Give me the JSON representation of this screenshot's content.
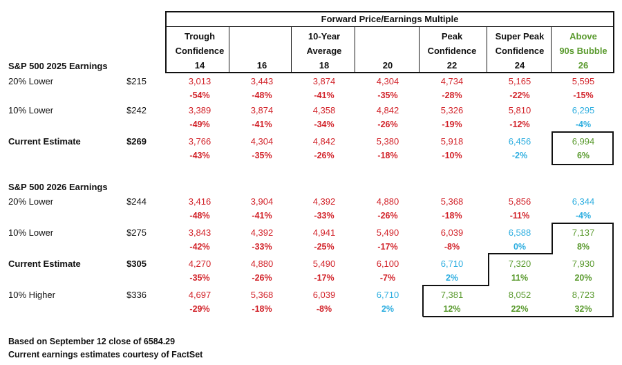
{
  "header": {
    "title": "Forward Price/Earnings Multiple",
    "columns": [
      {
        "label_lines": [
          "Trough",
          "Confidence"
        ],
        "multiple": "14",
        "color": "#111111"
      },
      {
        "label_lines": [],
        "multiple": "16",
        "color": "#111111"
      },
      {
        "label_lines": [
          "10-Year",
          "Average"
        ],
        "multiple": "18",
        "color": "#111111"
      },
      {
        "label_lines": [],
        "multiple": "20",
        "color": "#111111"
      },
      {
        "label_lines": [
          "Peak",
          "Confidence"
        ],
        "multiple": "22",
        "color": "#111111"
      },
      {
        "label_lines": [
          "Super Peak",
          "Confidence"
        ],
        "multiple": "24",
        "color": "#111111"
      },
      {
        "label_lines": [
          "Above",
          "90s Bubble"
        ],
        "multiple": "26",
        "color": "#5a9a2e"
      }
    ]
  },
  "colors": {
    "red": "#d2232a",
    "blue": "#2eaee0",
    "green": "#5a9a2e"
  },
  "sections": [
    {
      "title": "S&P 500 2025 Earnings",
      "rows": [
        {
          "label": "20% Lower",
          "eps": "$215",
          "bold": false,
          "values": [
            "3,013",
            "3,443",
            "3,874",
            "4,304",
            "4,734",
            "5,165",
            "5,595"
          ],
          "pcts": [
            "-54%",
            "-48%",
            "-41%",
            "-35%",
            "-28%",
            "-22%",
            "-15%"
          ],
          "colors": [
            "red",
            "red",
            "red",
            "red",
            "red",
            "red",
            "red"
          ]
        },
        {
          "label": "10% Lower",
          "eps": "$242",
          "bold": false,
          "values": [
            "3,389",
            "3,874",
            "4,358",
            "4,842",
            "5,326",
            "5,810",
            "6,295"
          ],
          "pcts": [
            "-49%",
            "-41%",
            "-34%",
            "-26%",
            "-19%",
            "-12%",
            "-4%"
          ],
          "colors": [
            "red",
            "red",
            "red",
            "red",
            "red",
            "red",
            "blue"
          ]
        },
        {
          "label": "Current Estimate",
          "eps": "$269",
          "bold": true,
          "values": [
            "3,766",
            "4,304",
            "4,842",
            "5,380",
            "5,918",
            "6,456",
            "6,994"
          ],
          "pcts": [
            "-43%",
            "-35%",
            "-26%",
            "-18%",
            "-10%",
            "-2%",
            "6%"
          ],
          "colors": [
            "red",
            "red",
            "red",
            "red",
            "red",
            "blue",
            "green"
          ]
        }
      ]
    },
    {
      "title": "S&P 500 2026 Earnings",
      "rows": [
        {
          "label": "20% Lower",
          "eps": "$244",
          "bold": false,
          "values": [
            "3,416",
            "3,904",
            "4,392",
            "4,880",
            "5,368",
            "5,856",
            "6,344"
          ],
          "pcts": [
            "-48%",
            "-41%",
            "-33%",
            "-26%",
            "-18%",
            "-11%",
            "-4%"
          ],
          "colors": [
            "red",
            "red",
            "red",
            "red",
            "red",
            "red",
            "blue"
          ]
        },
        {
          "label": "10% Lower",
          "eps": "$275",
          "bold": false,
          "values": [
            "3,843",
            "4,392",
            "4,941",
            "5,490",
            "6,039",
            "6,588",
            "7,137"
          ],
          "pcts": [
            "-42%",
            "-33%",
            "-25%",
            "-17%",
            "-8%",
            "0%",
            "8%"
          ],
          "colors": [
            "red",
            "red",
            "red",
            "red",
            "red",
            "blue",
            "green"
          ]
        },
        {
          "label": "Current Estimate",
          "eps": "$305",
          "bold": true,
          "values": [
            "4,270",
            "4,880",
            "5,490",
            "6,100",
            "6,710",
            "7,320",
            "7,930"
          ],
          "pcts": [
            "-35%",
            "-26%",
            "-17%",
            "-7%",
            "2%",
            "11%",
            "20%"
          ],
          "colors": [
            "red",
            "red",
            "red",
            "red",
            "blue",
            "green",
            "green"
          ]
        },
        {
          "label": "10% Higher",
          "eps": "$336",
          "bold": false,
          "values": [
            "4,697",
            "5,368",
            "6,039",
            "6,710",
            "7,381",
            "8,052",
            "8,723"
          ],
          "pcts": [
            "-29%",
            "-18%",
            "-8%",
            "2%",
            "12%",
            "22%",
            "32%"
          ],
          "colors": [
            "red",
            "red",
            "red",
            "blue",
            "green",
            "green",
            "green"
          ]
        }
      ]
    }
  ],
  "footnotes": [
    "Based on September 12 close of 6584.29",
    "Current earnings estimates courtesy of FactSet"
  ]
}
